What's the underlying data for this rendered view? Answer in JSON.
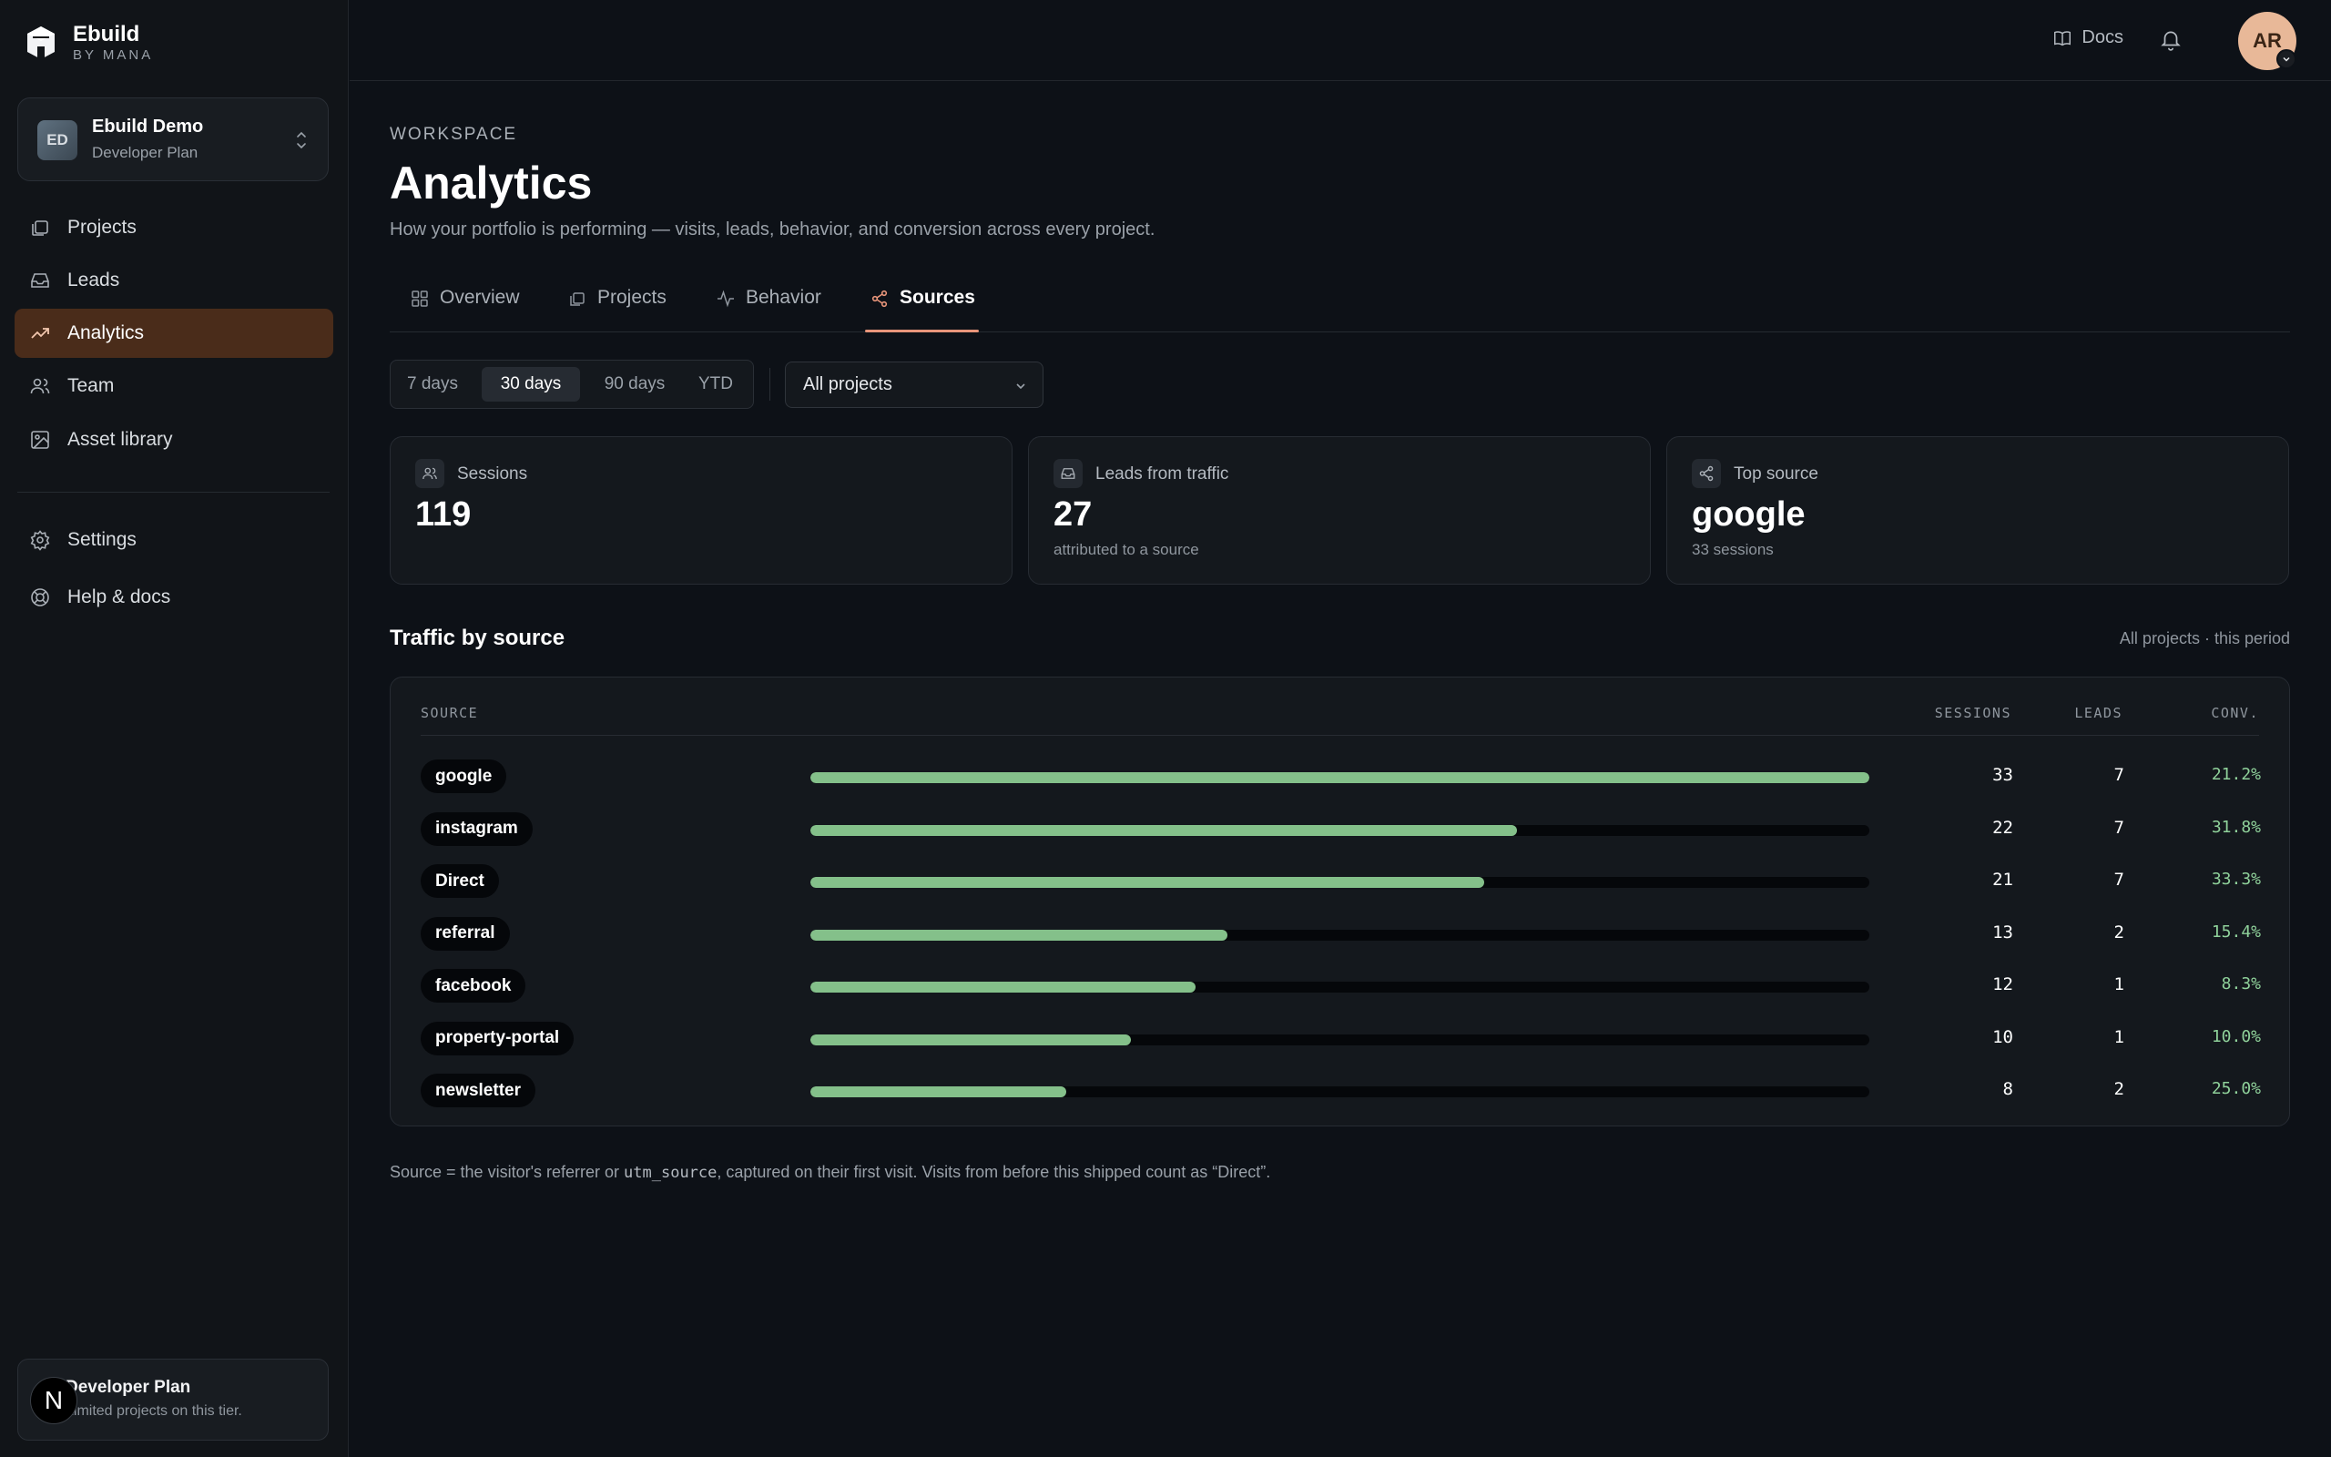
{
  "brand": {
    "name": "Ebuild",
    "sub": "BY MANA"
  },
  "workspace": {
    "initials": "ED",
    "name": "Ebuild Demo",
    "plan": "Developer Plan"
  },
  "nav": {
    "items": [
      {
        "label": "Projects",
        "icon": "projects-icon"
      },
      {
        "label": "Leads",
        "icon": "inbox-icon"
      },
      {
        "label": "Analytics",
        "icon": "trending-up-icon",
        "active": true
      },
      {
        "label": "Team",
        "icon": "users-icon"
      },
      {
        "label": "Asset library",
        "icon": "image-icon"
      }
    ],
    "secondary": [
      {
        "label": "Settings",
        "icon": "gear-icon"
      },
      {
        "label": "Help & docs",
        "icon": "lifebuoy-icon"
      }
    ]
  },
  "plan_card": {
    "badge": "N",
    "title": "Developer Plan",
    "desc": "Limited projects on this tier."
  },
  "topbar": {
    "docs": "Docs",
    "avatar": "AR"
  },
  "header": {
    "eyebrow": "WORKSPACE",
    "title": "Analytics",
    "subtitle": "How your portfolio is performing — visits, leads, behavior, and conversion across every project."
  },
  "tabs": [
    {
      "label": "Overview",
      "icon": "grid-icon"
    },
    {
      "label": "Projects",
      "icon": "projects-icon"
    },
    {
      "label": "Behavior",
      "icon": "activity-icon"
    },
    {
      "label": "Sources",
      "icon": "share-icon",
      "active": true
    }
  ],
  "range": {
    "options": [
      "7 days",
      "30 days",
      "90 days",
      "YTD"
    ],
    "selected": "30 days"
  },
  "project_filter": {
    "value": "All projects"
  },
  "stats": [
    {
      "label": "Sessions",
      "value": "119",
      "note": ""
    },
    {
      "label": "Leads from traffic",
      "value": "27",
      "note": "attributed to a source"
    },
    {
      "label": "Top source",
      "value": "google",
      "note": "33 sessions"
    }
  ],
  "traffic": {
    "title": "Traffic by source",
    "meta": "All projects · this period",
    "columns": {
      "source": "SOURCE",
      "sessions": "SESSIONS",
      "leads": "LEADS",
      "conv": "CONV."
    },
    "rows": [
      {
        "source": "google",
        "sessions": "33",
        "leads": "7",
        "conv": "21.2%",
        "share": 1.0
      },
      {
        "source": "instagram",
        "sessions": "22",
        "leads": "7",
        "conv": "31.8%",
        "share": 0.667
      },
      {
        "source": "Direct",
        "sessions": "21",
        "leads": "7",
        "conv": "33.3%",
        "share": 0.636
      },
      {
        "source": "referral",
        "sessions": "13",
        "leads": "2",
        "conv": "15.4%",
        "share": 0.394
      },
      {
        "source": "facebook",
        "sessions": "12",
        "leads": "1",
        "conv": "8.3%",
        "share": 0.364
      },
      {
        "source": "property-portal",
        "sessions": "10",
        "leads": "1",
        "conv": "10.0%",
        "share": 0.303
      },
      {
        "source": "newsletter",
        "sessions": "8",
        "leads": "2",
        "conv": "25.0%",
        "share": 0.242
      }
    ]
  },
  "footnote": {
    "before": "Source = the visitor's referrer or ",
    "code": "utm_source",
    "after": ", captured on their first visit. Visits from before this shipped count as “Direct”."
  },
  "colors": {
    "accent": "#e8957a",
    "bar": "#84c08a",
    "conv": "#8fd19a",
    "active_nav": "#4a2c1a"
  }
}
